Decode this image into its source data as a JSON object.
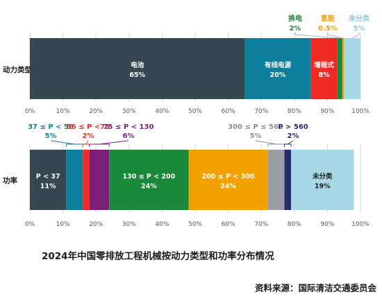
{
  "caption": "2024年中国零排放工程机械按动力类型和功率分布情况",
  "source": "资料来源：国际清洁交通委员会",
  "chart_data": [
    {
      "type": "bar",
      "orientation": "horizontal-stacked-percent",
      "ylabel": "动力类型",
      "xlim": [
        0,
        100
      ],
      "xticks": [
        "0%",
        "10%",
        "20%",
        "30%",
        "40%",
        "50%",
        "60%",
        "70%",
        "80%",
        "90%",
        "100%"
      ],
      "grid": true,
      "segments": [
        {
          "label": "电池",
          "value": 65,
          "value_label": "65%",
          "color": "#354750"
        },
        {
          "label": "有线电源",
          "value": 20,
          "value_label": "20%",
          "color": "#0d7f9c"
        },
        {
          "label": "增程式",
          "value": 8,
          "value_label": "8%",
          "color": "#ef2b24"
        },
        {
          "label": "换电",
          "value": 1.5,
          "value_label": "2%",
          "color": "#1a8a3a"
        },
        {
          "label": "氢能",
          "value": 0.5,
          "value_label": "0.5%",
          "color": "#f3a100"
        },
        {
          "label": "未分类",
          "value": 5,
          "value_label": "5%",
          "color": "#a8d8e6"
        }
      ]
    },
    {
      "type": "bar",
      "orientation": "horizontal-stacked-percent",
      "ylabel": "功率",
      "xlim": [
        0,
        100
      ],
      "xticks": [
        "0%",
        "10%",
        "20%",
        "30%",
        "40%",
        "50%",
        "60%",
        "70%",
        "80%",
        "90%",
        "100%"
      ],
      "grid": true,
      "segments": [
        {
          "label": "P < 37",
          "value": 11,
          "value_label": "11%",
          "color": "#354750"
        },
        {
          "label": "37 ≤ P < 56",
          "value": 5,
          "value_label": "5%",
          "color": "#0d7f9c"
        },
        {
          "label": "56 ≤ P <75",
          "value": 2,
          "value_label": "2%",
          "color": "#ef2b24"
        },
        {
          "label": "75 ≤ P < 130",
          "value": 6,
          "value_label": "6%",
          "color": "#7a1f78"
        },
        {
          "label": "130 ≤ P < 200",
          "value": 24,
          "value_label": "24%",
          "color": "#1a8a3a"
        },
        {
          "label": "200 ≤ P < 300",
          "value": 24,
          "value_label": "24%",
          "color": "#f3a100"
        },
        {
          "label": "300 ≤ P ≤ 560",
          "value": 5,
          "value_label": "5%",
          "color": "#9a9ea4"
        },
        {
          "label": "P > 560",
          "value": 2,
          "value_label": "2%",
          "color": "#2a2a6e"
        },
        {
          "label": "未分类",
          "value": 19,
          "value_label": "19%",
          "color": "#a8d8e6"
        }
      ]
    }
  ]
}
